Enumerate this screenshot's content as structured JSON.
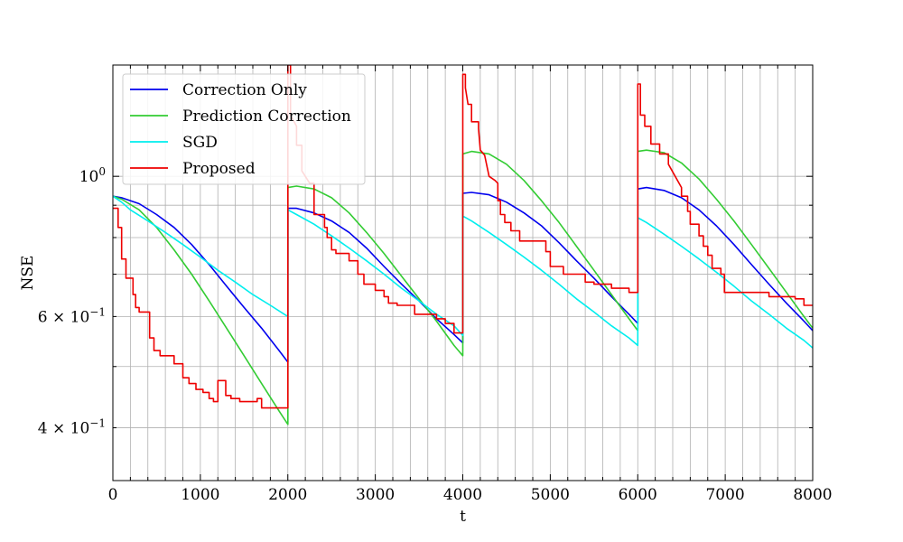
{
  "chart_data": {
    "type": "line",
    "title": "",
    "xlabel": "t",
    "ylabel": "NSE",
    "xlim": [
      0,
      8000
    ],
    "ylim": [
      0.33,
      1.5
    ],
    "yscale": "log",
    "grid": true,
    "legend_position": "top-left",
    "x_ticks": [
      {
        "value": 0,
        "label": "0"
      },
      {
        "value": 1000,
        "label": "1000"
      },
      {
        "value": 2000,
        "label": "2000"
      },
      {
        "value": 3000,
        "label": "3000"
      },
      {
        "value": 4000,
        "label": "4000"
      },
      {
        "value": 5000,
        "label": "5000"
      },
      {
        "value": 6000,
        "label": "6000"
      },
      {
        "value": 7000,
        "label": "7000"
      },
      {
        "value": 8000,
        "label": "8000"
      }
    ],
    "y_ticks": [
      {
        "value": 1.0,
        "base": "10",
        "exp": "0",
        "mult": ""
      },
      {
        "value": 0.6,
        "base": "10",
        "exp": "−1",
        "mult": "6 × "
      },
      {
        "value": 0.4,
        "base": "10",
        "exp": "−1",
        "mult": "4 × "
      }
    ],
    "series": [
      {
        "name": "Correction Only",
        "color": "#0000ee",
        "points": [
          [
            0,
            0.93
          ],
          [
            100,
            0.925
          ],
          [
            300,
            0.905
          ],
          [
            500,
            0.87
          ],
          [
            700,
            0.83
          ],
          [
            900,
            0.78
          ],
          [
            1100,
            0.725
          ],
          [
            1300,
            0.67
          ],
          [
            1500,
            0.62
          ],
          [
            1700,
            0.575
          ],
          [
            1900,
            0.53
          ],
          [
            2000,
            0.508
          ],
          [
            2001,
            0.89
          ],
          [
            2100,
            0.89
          ],
          [
            2300,
            0.875
          ],
          [
            2500,
            0.85
          ],
          [
            2700,
            0.815
          ],
          [
            2900,
            0.77
          ],
          [
            3100,
            0.72
          ],
          [
            3300,
            0.675
          ],
          [
            3500,
            0.635
          ],
          [
            3700,
            0.595
          ],
          [
            3900,
            0.562
          ],
          [
            4000,
            0.545
          ],
          [
            4001,
            0.94
          ],
          [
            4100,
            0.943
          ],
          [
            4300,
            0.935
          ],
          [
            4500,
            0.91
          ],
          [
            4700,
            0.875
          ],
          [
            4900,
            0.835
          ],
          [
            5100,
            0.785
          ],
          [
            5300,
            0.735
          ],
          [
            5500,
            0.69
          ],
          [
            5700,
            0.645
          ],
          [
            5900,
            0.605
          ],
          [
            6000,
            0.585
          ],
          [
            6001,
            0.955
          ],
          [
            6100,
            0.96
          ],
          [
            6300,
            0.95
          ],
          [
            6500,
            0.925
          ],
          [
            6700,
            0.885
          ],
          [
            6900,
            0.835
          ],
          [
            7100,
            0.78
          ],
          [
            7300,
            0.725
          ],
          [
            7500,
            0.675
          ],
          [
            7700,
            0.63
          ],
          [
            7900,
            0.59
          ],
          [
            8000,
            0.57
          ]
        ]
      },
      {
        "name": "Prediction Correction",
        "color": "#33cc33",
        "points": [
          [
            0,
            0.93
          ],
          [
            100,
            0.92
          ],
          [
            300,
            0.885
          ],
          [
            500,
            0.83
          ],
          [
            700,
            0.765
          ],
          [
            900,
            0.7
          ],
          [
            1100,
            0.635
          ],
          [
            1300,
            0.575
          ],
          [
            1500,
            0.52
          ],
          [
            1700,
            0.47
          ],
          [
            1900,
            0.425
          ],
          [
            2000,
            0.405
          ],
          [
            2001,
            0.96
          ],
          [
            2100,
            0.965
          ],
          [
            2300,
            0.955
          ],
          [
            2500,
            0.925
          ],
          [
            2700,
            0.875
          ],
          [
            2900,
            0.815
          ],
          [
            3100,
            0.755
          ],
          [
            3300,
            0.695
          ],
          [
            3500,
            0.64
          ],
          [
            3700,
            0.59
          ],
          [
            3900,
            0.54
          ],
          [
            4000,
            0.52
          ],
          [
            4001,
            1.085
          ],
          [
            4100,
            1.095
          ],
          [
            4300,
            1.085
          ],
          [
            4500,
            1.045
          ],
          [
            4700,
            0.985
          ],
          [
            4900,
            0.915
          ],
          [
            5100,
            0.845
          ],
          [
            5300,
            0.775
          ],
          [
            5500,
            0.71
          ],
          [
            5700,
            0.65
          ],
          [
            5900,
            0.595
          ],
          [
            6000,
            0.57
          ],
          [
            6001,
            1.095
          ],
          [
            6100,
            1.1
          ],
          [
            6300,
            1.09
          ],
          [
            6500,
            1.05
          ],
          [
            6700,
            0.99
          ],
          [
            6900,
            0.92
          ],
          [
            7100,
            0.85
          ],
          [
            7300,
            0.78
          ],
          [
            7500,
            0.715
          ],
          [
            7700,
            0.655
          ],
          [
            7900,
            0.6
          ],
          [
            8000,
            0.575
          ]
        ]
      },
      {
        "name": "SGD",
        "color": "#00eeee",
        "points": [
          [
            0,
            0.93
          ],
          [
            100,
            0.91
          ],
          [
            200,
            0.885
          ],
          [
            400,
            0.85
          ],
          [
            600,
            0.815
          ],
          [
            800,
            0.78
          ],
          [
            1000,
            0.745
          ],
          [
            1200,
            0.71
          ],
          [
            1400,
            0.68
          ],
          [
            1600,
            0.65
          ],
          [
            1800,
            0.625
          ],
          [
            2000,
            0.6
          ],
          [
            2001,
            0.885
          ],
          [
            2100,
            0.87
          ],
          [
            2300,
            0.84
          ],
          [
            2500,
            0.805
          ],
          [
            2700,
            0.77
          ],
          [
            2900,
            0.735
          ],
          [
            3100,
            0.7
          ],
          [
            3300,
            0.665
          ],
          [
            3500,
            0.635
          ],
          [
            3700,
            0.605
          ],
          [
            3900,
            0.58
          ],
          [
            4000,
            0.56
          ],
          [
            4001,
            0.865
          ],
          [
            4100,
            0.85
          ],
          [
            4300,
            0.815
          ],
          [
            4500,
            0.78
          ],
          [
            4700,
            0.745
          ],
          [
            4900,
            0.71
          ],
          [
            5100,
            0.675
          ],
          [
            5300,
            0.64
          ],
          [
            5500,
            0.61
          ],
          [
            5700,
            0.58
          ],
          [
            5900,
            0.555
          ],
          [
            6000,
            0.54
          ],
          [
            6001,
            0.86
          ],
          [
            6100,
            0.845
          ],
          [
            6300,
            0.81
          ],
          [
            6500,
            0.775
          ],
          [
            6700,
            0.74
          ],
          [
            6900,
            0.705
          ],
          [
            7100,
            0.67
          ],
          [
            7300,
            0.635
          ],
          [
            7500,
            0.605
          ],
          [
            7700,
            0.575
          ],
          [
            7900,
            0.55
          ],
          [
            8000,
            0.535
          ]
        ]
      },
      {
        "name": "Proposed",
        "color": "#ee0000",
        "points": [
          [
            0,
            0.89
          ],
          [
            60,
            0.89
          ],
          [
            60,
            0.83
          ],
          [
            100,
            0.83
          ],
          [
            100,
            0.74
          ],
          [
            150,
            0.74
          ],
          [
            150,
            0.69
          ],
          [
            230,
            0.69
          ],
          [
            230,
            0.65
          ],
          [
            260,
            0.65
          ],
          [
            260,
            0.62
          ],
          [
            300,
            0.62
          ],
          [
            300,
            0.61
          ],
          [
            420,
            0.61
          ],
          [
            420,
            0.555
          ],
          [
            470,
            0.555
          ],
          [
            470,
            0.53
          ],
          [
            540,
            0.53
          ],
          [
            540,
            0.52
          ],
          [
            700,
            0.52
          ],
          [
            700,
            0.505
          ],
          [
            800,
            0.505
          ],
          [
            800,
            0.48
          ],
          [
            870,
            0.48
          ],
          [
            870,
            0.47
          ],
          [
            950,
            0.47
          ],
          [
            950,
            0.46
          ],
          [
            1030,
            0.46
          ],
          [
            1030,
            0.455
          ],
          [
            1100,
            0.455
          ],
          [
            1100,
            0.445
          ],
          [
            1150,
            0.445
          ],
          [
            1150,
            0.44
          ],
          [
            1200,
            0.44
          ],
          [
            1200,
            0.475
          ],
          [
            1290,
            0.475
          ],
          [
            1290,
            0.45
          ],
          [
            1350,
            0.45
          ],
          [
            1350,
            0.445
          ],
          [
            1450,
            0.445
          ],
          [
            1450,
            0.44
          ],
          [
            1650,
            0.44
          ],
          [
            1650,
            0.445
          ],
          [
            1700,
            0.445
          ],
          [
            1700,
            0.43
          ],
          [
            2000,
            0.43
          ],
          [
            2000,
            1.5
          ],
          [
            2030,
            1.5
          ],
          [
            2030,
            1.25
          ],
          [
            2100,
            1.2
          ],
          [
            2100,
            1.12
          ],
          [
            2160,
            1.12
          ],
          [
            2160,
            1.02
          ],
          [
            2200,
            1.0
          ],
          [
            2250,
            0.975
          ],
          [
            2300,
            0.975
          ],
          [
            2300,
            0.87
          ],
          [
            2420,
            0.87
          ],
          [
            2420,
            0.83
          ],
          [
            2450,
            0.83
          ],
          [
            2450,
            0.8
          ],
          [
            2500,
            0.8
          ],
          [
            2500,
            0.765
          ],
          [
            2550,
            0.765
          ],
          [
            2550,
            0.755
          ],
          [
            2700,
            0.755
          ],
          [
            2700,
            0.735
          ],
          [
            2800,
            0.735
          ],
          [
            2800,
            0.7
          ],
          [
            2870,
            0.7
          ],
          [
            2870,
            0.675
          ],
          [
            3000,
            0.675
          ],
          [
            3000,
            0.66
          ],
          [
            3100,
            0.66
          ],
          [
            3100,
            0.645
          ],
          [
            3150,
            0.645
          ],
          [
            3150,
            0.63
          ],
          [
            3250,
            0.63
          ],
          [
            3250,
            0.625
          ],
          [
            3450,
            0.625
          ],
          [
            3450,
            0.605
          ],
          [
            3700,
            0.605
          ],
          [
            3700,
            0.595
          ],
          [
            3800,
            0.595
          ],
          [
            3800,
            0.585
          ],
          [
            3900,
            0.585
          ],
          [
            3900,
            0.565
          ],
          [
            4000,
            0.565
          ],
          [
            4000,
            1.45
          ],
          [
            4030,
            1.45
          ],
          [
            4030,
            1.38
          ],
          [
            4060,
            1.3
          ],
          [
            4100,
            1.3
          ],
          [
            4100,
            1.22
          ],
          [
            4180,
            1.22
          ],
          [
            4180,
            1.19
          ],
          [
            4200,
            1.1
          ],
          [
            4250,
            1.08
          ],
          [
            4300,
            1.0
          ],
          [
            4370,
            0.985
          ],
          [
            4400,
            0.975
          ],
          [
            4400,
            0.915
          ],
          [
            4430,
            0.915
          ],
          [
            4430,
            0.87
          ],
          [
            4480,
            0.87
          ],
          [
            4480,
            0.845
          ],
          [
            4550,
            0.845
          ],
          [
            4550,
            0.82
          ],
          [
            4650,
            0.82
          ],
          [
            4650,
            0.79
          ],
          [
            4950,
            0.79
          ],
          [
            4950,
            0.76
          ],
          [
            5000,
            0.76
          ],
          [
            5000,
            0.72
          ],
          [
            5150,
            0.72
          ],
          [
            5150,
            0.7
          ],
          [
            5400,
            0.7
          ],
          [
            5400,
            0.68
          ],
          [
            5500,
            0.68
          ],
          [
            5500,
            0.675
          ],
          [
            5700,
            0.675
          ],
          [
            5700,
            0.665
          ],
          [
            5900,
            0.665
          ],
          [
            5900,
            0.655
          ],
          [
            6000,
            0.655
          ],
          [
            6000,
            1.4
          ],
          [
            6030,
            1.4
          ],
          [
            6030,
            1.25
          ],
          [
            6080,
            1.25
          ],
          [
            6080,
            1.2
          ],
          [
            6150,
            1.2
          ],
          [
            6150,
            1.125
          ],
          [
            6250,
            1.125
          ],
          [
            6250,
            1.085
          ],
          [
            6350,
            1.085
          ],
          [
            6350,
            1.045
          ],
          [
            6500,
            0.96
          ],
          [
            6500,
            0.93
          ],
          [
            6570,
            0.93
          ],
          [
            6570,
            0.88
          ],
          [
            6600,
            0.88
          ],
          [
            6600,
            0.84
          ],
          [
            6700,
            0.84
          ],
          [
            6700,
            0.805
          ],
          [
            6750,
            0.805
          ],
          [
            6750,
            0.775
          ],
          [
            6800,
            0.775
          ],
          [
            6800,
            0.75
          ],
          [
            6850,
            0.75
          ],
          [
            6850,
            0.715
          ],
          [
            6950,
            0.715
          ],
          [
            6950,
            0.7
          ],
          [
            6990,
            0.7
          ],
          [
            6990,
            0.655
          ],
          [
            7500,
            0.655
          ],
          [
            7500,
            0.645
          ],
          [
            7800,
            0.645
          ],
          [
            7800,
            0.64
          ],
          [
            7900,
            0.64
          ],
          [
            7900,
            0.625
          ],
          [
            8000,
            0.625
          ]
        ]
      }
    ]
  }
}
